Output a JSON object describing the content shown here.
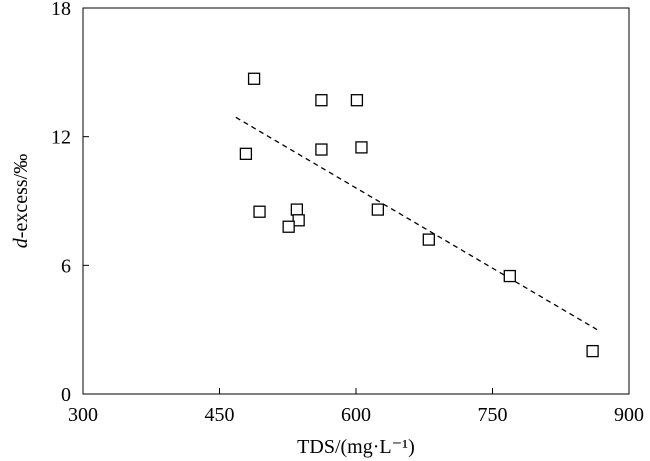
{
  "chart_data": {
    "type": "scatter",
    "title": "",
    "xlabel": "TDS/(mg·L⁻¹)",
    "ylabel_italic": "d",
    "ylabel_rest": "-excess/‰",
    "xlim": [
      300,
      900
    ],
    "ylim": [
      0,
      18
    ],
    "x_ticks": [
      "300",
      "450",
      "600",
      "750",
      "900"
    ],
    "y_ticks": [
      "0",
      "6",
      "12",
      "18"
    ],
    "grid": false,
    "legend": "none",
    "marker": "open-square",
    "series": [
      {
        "points": [
          {
            "x": 488,
            "y": 14.7
          },
          {
            "x": 562,
            "y": 13.7
          },
          {
            "x": 601,
            "y": 13.7
          },
          {
            "x": 479,
            "y": 11.2
          },
          {
            "x": 562,
            "y": 11.4
          },
          {
            "x": 606,
            "y": 11.5
          },
          {
            "x": 494,
            "y": 8.5
          },
          {
            "x": 535,
            "y": 8.6
          },
          {
            "x": 537,
            "y": 8.1
          },
          {
            "x": 526,
            "y": 7.8
          },
          {
            "x": 624,
            "y": 8.6
          },
          {
            "x": 680,
            "y": 7.2
          },
          {
            "x": 769,
            "y": 5.5
          },
          {
            "x": 860,
            "y": 2.0
          }
        ]
      }
    ],
    "trendline": {
      "style": "dashed",
      "points": [
        {
          "x": 468,
          "y": 12.9
        },
        {
          "x": 865,
          "y": 3.0
        }
      ]
    }
  }
}
